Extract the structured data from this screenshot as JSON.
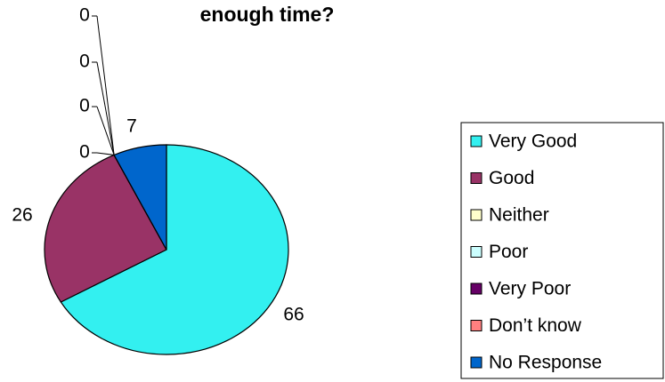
{
  "chart_data": {
    "type": "pie",
    "title": "enough time?",
    "categories": [
      "Very Good",
      "Good",
      "Neither",
      "Poor",
      "Very Poor",
      "Don’t know",
      "No Response"
    ],
    "values": [
      66,
      26,
      0,
      0,
      0,
      0,
      7
    ],
    "colors": [
      "#33F0F0",
      "#993366",
      "#FFFFCC",
      "#CCFFFF",
      "#660066",
      "#FF8080",
      "#0066CC"
    ],
    "legend": "right"
  }
}
